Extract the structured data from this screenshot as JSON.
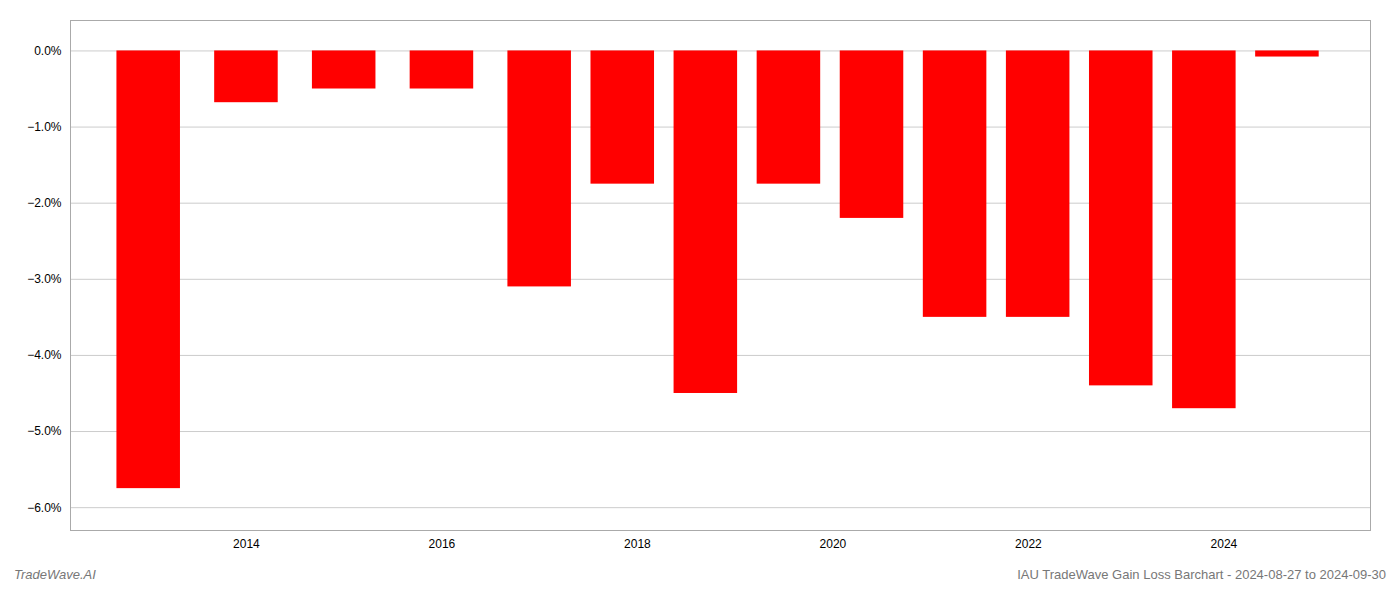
{
  "chart_data": {
    "type": "bar",
    "x": [
      2013,
      2014,
      2015,
      2016,
      2017,
      2017.85,
      2018.7,
      2019.55,
      2020.4,
      2021.25,
      2022.1,
      2022.95,
      2023.8,
      2024.65
    ],
    "values": [
      -5.75,
      -0.68,
      -0.5,
      -0.5,
      -3.1,
      -1.75,
      -4.5,
      -1.75,
      -2.2,
      -3.5,
      -3.5,
      -4.4,
      -4.7,
      -0.08
    ],
    "color": "#ff0000",
    "xlim": [
      2012.2,
      2025.5
    ],
    "xticks": [
      2014,
      2016,
      2018,
      2020,
      2022,
      2024
    ],
    "ylim": [
      -6.3,
      0.4
    ],
    "yticks": [
      {
        "value": 0.0,
        "label": "0.0%"
      },
      {
        "value": -1.0,
        "label": "−1.0%"
      },
      {
        "value": -2.0,
        "label": "−2.0%"
      },
      {
        "value": -3.0,
        "label": "−3.0%"
      },
      {
        "value": -4.0,
        "label": "−4.0%"
      },
      {
        "value": -5.0,
        "label": "−5.0%"
      },
      {
        "value": -6.0,
        "label": "−6.0%"
      }
    ],
    "grid": true,
    "annotations": [
      "TradeWave.AI",
      "IAU TradeWave Gain Loss Barchart - 2024-08-27 to 2024-09-30"
    ]
  }
}
